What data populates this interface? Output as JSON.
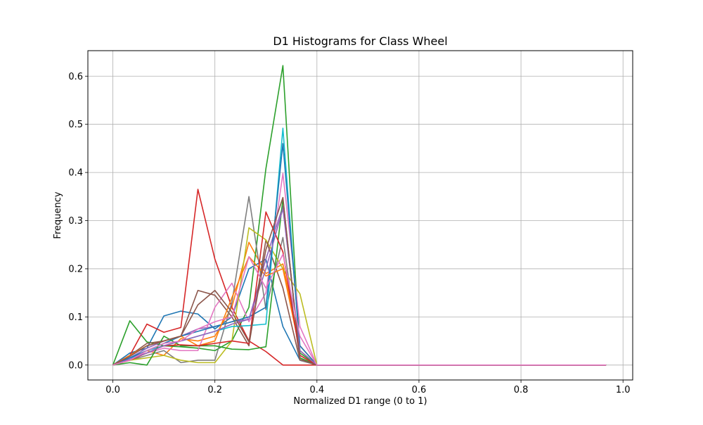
{
  "chart_data": {
    "type": "line",
    "title": "D1 Histograms for Class Wheel",
    "xlabel": "Normalized D1 range (0 to 1)",
    "ylabel": "Frequency",
    "xlim": [
      -0.049,
      1.019
    ],
    "ylim": [
      -0.031,
      0.653
    ],
    "xticks": [
      0.0,
      0.2,
      0.4,
      0.6,
      0.8,
      1.0
    ],
    "xtick_labels": [
      "0.0",
      "0.2",
      "0.4",
      "0.6",
      "0.8",
      "1.0"
    ],
    "yticks": [
      0.0,
      0.1,
      0.2,
      0.3,
      0.4,
      0.5,
      0.6
    ],
    "ytick_labels": [
      "0.0",
      "0.1",
      "0.2",
      "0.3",
      "0.4",
      "0.5",
      "0.6"
    ],
    "grid": true,
    "x": [
      0.0,
      0.0333,
      0.0667,
      0.1,
      0.1333,
      0.1667,
      0.2,
      0.2333,
      0.2667,
      0.3,
      0.3333,
      0.3667,
      0.4,
      0.4333,
      0.4667,
      0.5,
      0.5333,
      0.5667,
      0.6,
      0.6333,
      0.6667,
      0.7,
      0.7333,
      0.7667,
      0.8,
      0.8333,
      0.8667,
      0.9,
      0.9333,
      0.9667
    ],
    "series": [
      {
        "color": "#1f77b4",
        "values": [
          0.0,
          0.025,
          0.035,
          0.102,
          0.112,
          0.106,
          0.075,
          0.1,
          0.2,
          0.22,
          0.08,
          0.01,
          0.0,
          0,
          0,
          0,
          0,
          0,
          0,
          0,
          0,
          0,
          0,
          0,
          0,
          0,
          0,
          0,
          0,
          0
        ]
      },
      {
        "color": "#ff7f0e",
        "values": [
          0.0,
          0.01,
          0.03,
          0.02,
          0.055,
          0.05,
          0.06,
          0.12,
          0.255,
          0.19,
          0.21,
          0.04,
          0.0,
          0,
          0,
          0,
          0,
          0,
          0,
          0,
          0,
          0,
          0,
          0,
          0,
          0,
          0,
          0,
          0,
          0
        ]
      },
      {
        "color": "#2ca02c",
        "values": [
          0.0,
          0.092,
          0.048,
          0.04,
          0.038,
          0.035,
          0.03,
          0.05,
          0.12,
          0.408,
          0.622,
          0.025,
          0.0,
          0,
          0,
          0,
          0,
          0,
          0,
          0,
          0,
          0,
          0,
          0,
          0,
          0,
          0,
          0,
          0,
          0
        ]
      },
      {
        "color": "#d62728",
        "values": [
          0.0,
          0.02,
          0.085,
          0.068,
          0.078,
          0.365,
          0.22,
          0.12,
          0.05,
          0.028,
          0.0,
          0.0,
          0.0,
          0,
          0,
          0,
          0,
          0,
          0,
          0,
          0,
          0,
          0,
          0,
          0,
          0,
          0,
          0,
          0,
          0
        ]
      },
      {
        "color": "#9467bd",
        "values": [
          0.0,
          0.015,
          0.035,
          0.05,
          0.06,
          0.075,
          0.08,
          0.09,
          0.095,
          0.22,
          0.33,
          0.02,
          0.0,
          0,
          0,
          0,
          0,
          0,
          0,
          0,
          0,
          0,
          0,
          0,
          0,
          0,
          0,
          0,
          0,
          0
        ]
      },
      {
        "color": "#8c564b",
        "values": [
          0.0,
          0.02,
          0.045,
          0.05,
          0.06,
          0.155,
          0.145,
          0.1,
          0.04,
          0.26,
          0.16,
          0.01,
          0.0,
          0,
          0,
          0,
          0,
          0,
          0,
          0,
          0,
          0,
          0,
          0,
          0,
          0,
          0,
          0,
          0,
          0
        ]
      },
      {
        "color": "#e377c2",
        "values": [
          0.0,
          0.015,
          0.025,
          0.035,
          0.03,
          0.03,
          0.12,
          0.17,
          0.09,
          0.15,
          0.398,
          0.08,
          0.0,
          0,
          0,
          0,
          0,
          0,
          0,
          0,
          0,
          0,
          0,
          0,
          0,
          0,
          0,
          0,
          0,
          0
        ]
      },
      {
        "color": "#7f7f7f",
        "values": [
          0.0,
          0.01,
          0.02,
          0.03,
          0.005,
          0.01,
          0.01,
          0.13,
          0.35,
          0.115,
          0.265,
          0.01,
          0.0,
          0,
          0,
          0,
          0,
          0,
          0,
          0,
          0,
          0,
          0,
          0,
          0,
          0,
          0,
          0,
          0,
          0
        ]
      },
      {
        "color": "#bcbd22",
        "values": [
          0.0,
          0.01,
          0.015,
          0.02,
          0.01,
          0.005,
          0.005,
          0.05,
          0.285,
          0.26,
          0.2,
          0.148,
          0.0,
          0,
          0,
          0,
          0,
          0,
          0,
          0,
          0,
          0,
          0,
          0,
          0,
          0,
          0,
          0,
          0,
          0
        ]
      },
      {
        "color": "#17becf",
        "values": [
          0.0,
          0.012,
          0.03,
          0.04,
          0.05,
          0.06,
          0.07,
          0.08,
          0.082,
          0.085,
          0.492,
          0.03,
          0.0,
          0,
          0,
          0,
          0,
          0,
          0,
          0,
          0,
          0,
          0,
          0,
          0,
          0,
          0,
          0,
          0,
          0
        ]
      },
      {
        "color": "#1f77b4",
        "values": [
          0.0,
          0.015,
          0.03,
          0.045,
          0.06,
          0.07,
          0.08,
          0.09,
          0.1,
          0.12,
          0.46,
          0.04,
          0.0,
          0,
          0,
          0,
          0,
          0,
          0,
          0,
          0,
          0,
          0,
          0,
          0,
          0,
          0,
          0,
          0,
          0
        ]
      },
      {
        "color": "#ff7f0e",
        "values": [
          0.0,
          0.02,
          0.04,
          0.05,
          0.06,
          0.04,
          0.05,
          0.14,
          0.225,
          0.185,
          0.2,
          0.03,
          0.0,
          0,
          0,
          0,
          0,
          0,
          0,
          0,
          0,
          0,
          0,
          0,
          0,
          0,
          0,
          0,
          0,
          0
        ]
      },
      {
        "color": "#2ca02c",
        "values": [
          0.0,
          0.005,
          0.0,
          0.06,
          0.04,
          0.04,
          0.04,
          0.033,
          0.032,
          0.038,
          0.345,
          0.015,
          0.0,
          0,
          0,
          0,
          0,
          0,
          0,
          0,
          0,
          0,
          0,
          0,
          0,
          0,
          0,
          0,
          0,
          0
        ]
      },
      {
        "color": "#d62728",
        "values": [
          0.0,
          0.01,
          0.025,
          0.04,
          0.042,
          0.04,
          0.045,
          0.05,
          0.045,
          0.318,
          0.235,
          0.02,
          0.0,
          0,
          0,
          0,
          0,
          0,
          0,
          0,
          0,
          0,
          0,
          0,
          0,
          0,
          0,
          0,
          0,
          0
        ]
      },
      {
        "color": "#9467bd",
        "values": [
          0.0,
          0.012,
          0.025,
          0.04,
          0.05,
          0.06,
          0.07,
          0.085,
          0.095,
          0.2,
          0.325,
          0.03,
          0.0,
          0,
          0,
          0,
          0,
          0,
          0,
          0,
          0,
          0,
          0,
          0,
          0,
          0,
          0,
          0,
          0,
          0
        ]
      },
      {
        "color": "#8c564b",
        "values": [
          0.0,
          0.018,
          0.04,
          0.05,
          0.06,
          0.125,
          0.155,
          0.11,
          0.048,
          0.24,
          0.348,
          0.012,
          0.0,
          0,
          0,
          0,
          0,
          0,
          0,
          0,
          0,
          0,
          0,
          0,
          0,
          0,
          0,
          0,
          0,
          0
        ]
      },
      {
        "color": "#e377c2",
        "values": [
          0.0,
          0.01,
          0.03,
          0.045,
          0.05,
          0.075,
          0.09,
          0.1,
          0.225,
          0.16,
          0.23,
          0.06,
          0.0,
          0,
          0,
          0,
          0,
          0,
          0,
          0,
          0,
          0,
          0,
          0,
          0,
          0,
          0,
          0,
          0,
          0
        ]
      }
    ]
  }
}
